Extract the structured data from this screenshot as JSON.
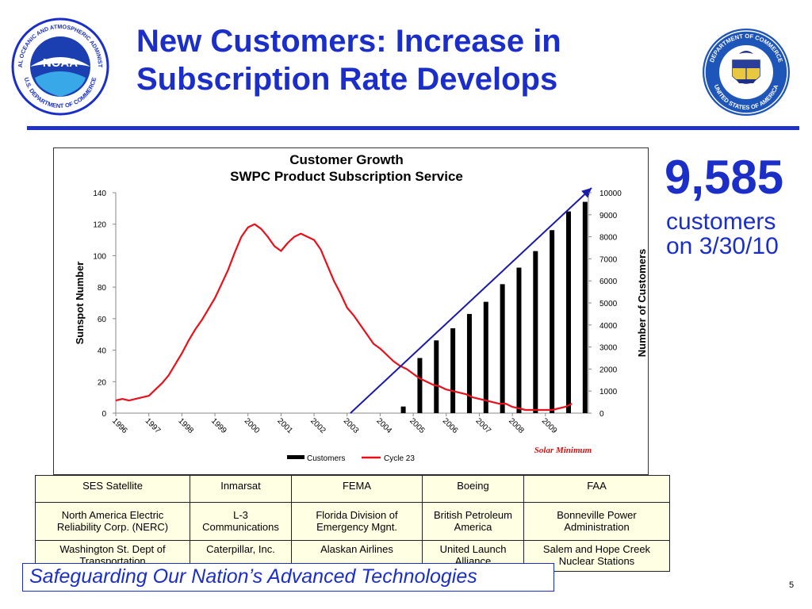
{
  "slide": {
    "title_line1": "New Customers: Increase in",
    "title_line2": "Subscription Rate Develops",
    "page_number": "5",
    "tagline": "Safeguarding Our Nation’s Advanced Technologies"
  },
  "logos": {
    "noaa": {
      "text": "NOAA",
      "ring_top": "NATIONAL OCEANIC AND ATMOSPHERIC ADMINISTRATION",
      "ring_bottom": "U.S. DEPARTMENT OF COMMERCE"
    },
    "doc": {
      "ring_top": "DEPARTMENT OF COMMERCE",
      "ring_bottom": "UNITED STATES OF AMERICA"
    }
  },
  "highlight": {
    "number": "9,585",
    "line1": "customers",
    "line2": "on 3/30/10"
  },
  "colors": {
    "title_blue": "#1b2fc8",
    "cycle_line": "#e8101a",
    "arrow": "#1a1aa8",
    "bars": "#000000",
    "table_bg": "#ffffe3",
    "annotation": "#cc1414"
  },
  "chart_data": {
    "type": "bar",
    "title": "Customer Growth",
    "subtitle": "SWPC Product Subscription Service",
    "ylabel_left": "Sunspot Number",
    "ylabel_right": "Number of Customers",
    "ylim_left": [
      0,
      140
    ],
    "ylim_right": [
      0,
      10000
    ],
    "left_ticks": [
      0,
      20,
      40,
      60,
      80,
      100,
      120,
      140
    ],
    "right_ticks": [
      0,
      1000,
      2000,
      3000,
      4000,
      5000,
      6000,
      7000,
      8000,
      9000,
      10000
    ],
    "x_tick_labels": [
      "1996",
      "1997",
      "1998",
      "1999",
      "2000",
      "2001",
      "2002",
      "2003",
      "2004",
      "2005",
      "2006",
      "2007",
      "2008",
      "2009"
    ],
    "xlim": [
      1996,
      2010.3
    ],
    "annotation": "Solar Minimum",
    "legend": {
      "placement": "bottom",
      "customers": "Customers",
      "cycle": "Cycle 23"
    },
    "customers": {
      "x": [
        2004.7,
        2005.2,
        2005.7,
        2006.2,
        2006.7,
        2007.2,
        2007.7,
        2008.2,
        2008.7,
        2009.2,
        2009.7,
        2010.2
      ],
      "values": [
        300,
        2500,
        3300,
        3850,
        4500,
        5050,
        5850,
        6600,
        7350,
        8300,
        9150,
        9585
      ]
    },
    "arrow": {
      "from": [
        2003.1,
        0
      ],
      "to": [
        2010.3,
        10000
      ]
    },
    "cycle23": {
      "x": [
        1996.0,
        1996.2,
        1996.4,
        1996.6,
        1996.8,
        1997.0,
        1997.2,
        1997.4,
        1997.6,
        1997.8,
        1998.0,
        1998.2,
        1998.4,
        1998.6,
        1998.8,
        1999.0,
        1999.2,
        1999.4,
        1999.6,
        1999.8,
        2000.0,
        2000.2,
        2000.4,
        2000.6,
        2000.8,
        2001.0,
        2001.2,
        2001.4,
        2001.6,
        2001.8,
        2002.0,
        2002.2,
        2002.4,
        2002.6,
        2002.8,
        2003.0,
        2003.2,
        2003.4,
        2003.6,
        2003.8,
        2004.0,
        2004.2,
        2004.4,
        2004.6,
        2004.8,
        2005.0,
        2005.2,
        2005.4,
        2005.6,
        2005.8,
        2006.0,
        2006.2,
        2006.4,
        2006.6,
        2006.8,
        2007.0,
        2007.2,
        2007.4,
        2007.6,
        2007.8,
        2008.0,
        2008.2,
        2008.4,
        2008.6,
        2008.8,
        2009.0,
        2009.2,
        2009.4,
        2009.6,
        2009.8
      ],
      "values": [
        8,
        9,
        8,
        9,
        10,
        11,
        15,
        19,
        24,
        31,
        38,
        46,
        53,
        59,
        66,
        73,
        82,
        91,
        102,
        112,
        118,
        120,
        117,
        112,
        106,
        103,
        108,
        112,
        114,
        112,
        110,
        104,
        94,
        84,
        76,
        67,
        62,
        56,
        50,
        44,
        41,
        37,
        33,
        30,
        28,
        25,
        22,
        20,
        18,
        17,
        15,
        14,
        13,
        12,
        10,
        9,
        8,
        7,
        6,
        6,
        4,
        3,
        2,
        2,
        2,
        2,
        2,
        3,
        4,
        6
      ]
    }
  },
  "table": {
    "rows": [
      [
        "SES Satellite",
        "Inmarsat",
        "FEMA",
        "Boeing",
        "FAA"
      ],
      [
        "North America Electric Reliability Corp. (NERC)",
        "L-3 Communications",
        "Florida Division of Emergency Mgnt.",
        "British Petroleum America",
        "Bonneville Power Administration"
      ],
      [
        "Washington St. Dept of Transportation",
        "Caterpillar, Inc.",
        "Alaskan Airlines",
        "United Launch Alliance",
        "Salem and Hope Creek Nuclear Stations"
      ]
    ]
  }
}
